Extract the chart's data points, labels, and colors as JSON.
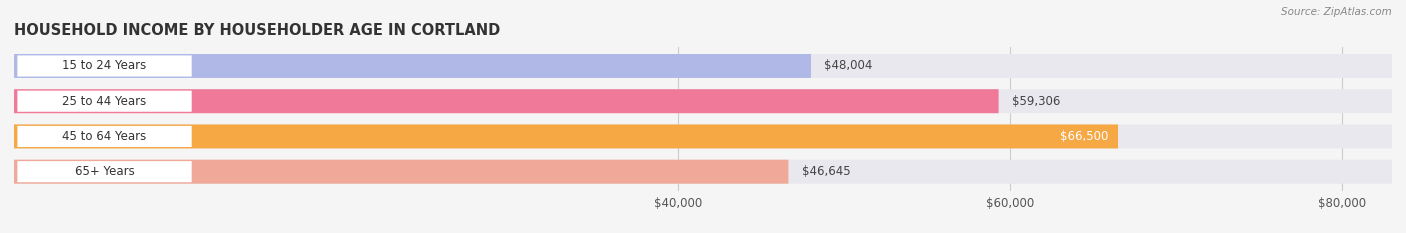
{
  "title": "HOUSEHOLD INCOME BY HOUSEHOLDER AGE IN CORTLAND",
  "source": "Source: ZipAtlas.com",
  "categories": [
    "15 to 24 Years",
    "25 to 44 Years",
    "45 to 64 Years",
    "65+ Years"
  ],
  "values": [
    48004,
    59306,
    66500,
    46645
  ],
  "bar_colors": [
    "#b0b8e8",
    "#f07898",
    "#f5a844",
    "#f0a898"
  ],
  "row_bg_color": "#e8e8ee",
  "label_pill_color": "#ffffff",
  "label_colors": [
    "#444444",
    "#444444",
    "#444444",
    "#444444"
  ],
  "value_label_colors": [
    "#444444",
    "#444444",
    "#ffffff",
    "#444444"
  ],
  "fig_bg_color": "#f5f5f5",
  "xlim_left": 0,
  "xlim_right": 83000,
  "data_min": 40000,
  "xticks": [
    40000,
    60000,
    80000
  ],
  "xtick_labels": [
    "$40,000",
    "$60,000",
    "$80,000"
  ],
  "value_labels": [
    "$48,004",
    "$59,306",
    "$66,500",
    "$46,645"
  ]
}
